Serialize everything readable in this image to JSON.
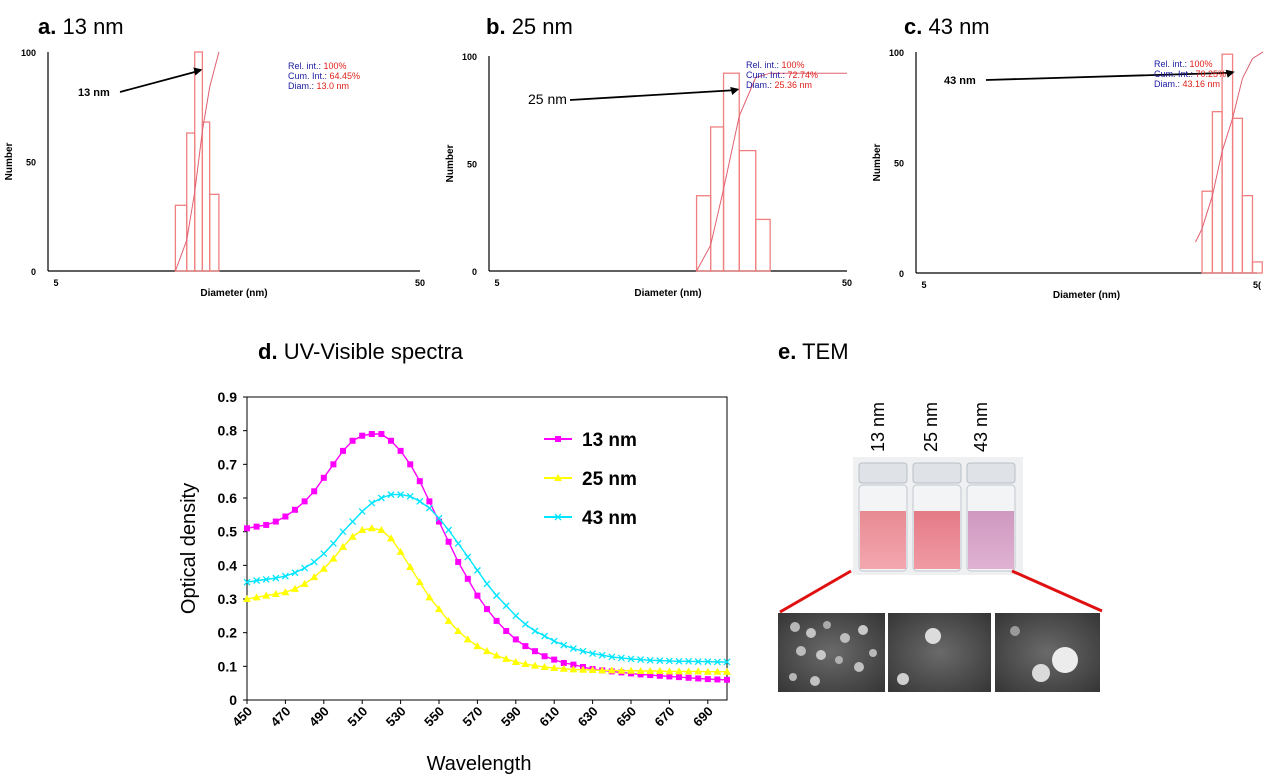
{
  "panels": {
    "a": {
      "letter": "a.",
      "title": "13 nm"
    },
    "b": {
      "letter": "b.",
      "title": "25 nm"
    },
    "c": {
      "letter": "c.",
      "title": "43 nm"
    },
    "d": {
      "letter": "d.",
      "title": "UV-Visible spectra"
    },
    "e": {
      "letter": "e.",
      "title": "TEM"
    }
  },
  "histogram_colors": {
    "bar": "#f08080",
    "curve": "#e06070",
    "label_key": "#1a1aa0",
    "label_value": "#e0201a"
  },
  "line_colors": [
    "#ff00ff",
    "#ffff00",
    "#00e5ff"
  ],
  "vial_labels": [
    "13 nm",
    "25 nm",
    "43 nm"
  ],
  "chart_data": [
    {
      "type": "bar",
      "panel": "a",
      "xlabel": "Diameter (nm)",
      "ylabel": "Number",
      "xscale": "log",
      "xlim": [
        5,
        50
      ],
      "ylim": [
        0,
        100
      ],
      "xticks": [
        "5",
        "50"
      ],
      "yticks": [
        "0",
        "50",
        "100"
      ],
      "bins": [
        {
          "x0": 11.0,
          "x1": 11.8,
          "value": 30
        },
        {
          "x0": 11.8,
          "x1": 12.4,
          "value": 63
        },
        {
          "x0": 12.4,
          "x1": 13.0,
          "value": 100
        },
        {
          "x0": 13.0,
          "x1": 13.6,
          "value": 68
        },
        {
          "x0": 13.6,
          "x1": 14.4,
          "value": 35
        }
      ],
      "cumulative": [
        [
          11.0,
          0
        ],
        [
          11.8,
          14
        ],
        [
          12.4,
          36
        ],
        [
          13.0,
          64
        ],
        [
          13.6,
          84
        ],
        [
          14.4,
          100
        ]
      ],
      "annotation": {
        "text": "13 nm",
        "x": 13.0
      },
      "info": [
        {
          "key": "Rel. int.:",
          "value": "100%"
        },
        {
          "key": "Cum. Int.:",
          "value": "64.45%"
        },
        {
          "key": "Diam.:",
          "value": "13.0 nm"
        }
      ]
    },
    {
      "type": "bar",
      "panel": "b",
      "xlabel": "Diameter (nm)",
      "ylabel": "Number",
      "xscale": "log",
      "xlim": [
        5,
        50
      ],
      "ylim": [
        0,
        100
      ],
      "xticks": [
        "5",
        "50"
      ],
      "yticks": [
        "0",
        "50",
        "100"
      ],
      "bins": [
        {
          "x0": 19.0,
          "x1": 20.8,
          "value": 35
        },
        {
          "x0": 20.8,
          "x1": 22.6,
          "value": 67
        },
        {
          "x0": 22.6,
          "x1": 25.0,
          "value": 92
        },
        {
          "x0": 25.0,
          "x1": 27.8,
          "value": 56
        },
        {
          "x0": 27.8,
          "x1": 30.5,
          "value": 24
        }
      ],
      "cumulative": [
        [
          19.0,
          0
        ],
        [
          20.8,
          12
        ],
        [
          22.6,
          38
        ],
        [
          25.0,
          72
        ],
        [
          27.8,
          90
        ],
        [
          30.5,
          92
        ],
        [
          50,
          92
        ]
      ],
      "annotation": {
        "text": "25 nm",
        "x": 25.0
      },
      "info": [
        {
          "key": "Rel. int.:",
          "value": "100%"
        },
        {
          "key": "Cum. Int.:",
          "value": "72.74%"
        },
        {
          "key": "Diam.:",
          "value": "25.36 nm"
        }
      ]
    },
    {
      "type": "bar",
      "panel": "c",
      "xlabel": "Diameter (nm)",
      "ylabel": "Number",
      "xscale": "log",
      "xlim": [
        5,
        50
      ],
      "ylim": [
        0,
        100
      ],
      "xticks": [
        "5",
        "5("
      ],
      "yticks": [
        "0",
        "50",
        "100"
      ],
      "bins": [
        {
          "x0": 34.5,
          "x1": 37.0,
          "value": 37
        },
        {
          "x0": 37.0,
          "x1": 39.5,
          "value": 73
        },
        {
          "x0": 39.5,
          "x1": 42.4,
          "value": 99
        },
        {
          "x0": 42.4,
          "x1": 45.3,
          "value": 70
        },
        {
          "x0": 45.3,
          "x1": 48.5,
          "value": 35
        },
        {
          "x0": 48.5,
          "x1": 51.8,
          "value": 5
        }
      ],
      "cumulative": [
        [
          33.0,
          14
        ],
        [
          34.5,
          20
        ],
        [
          37.0,
          35
        ],
        [
          39.5,
          55
        ],
        [
          42.4,
          70
        ],
        [
          45.3,
          88
        ],
        [
          48.5,
          97
        ],
        [
          52.0,
          100
        ],
        [
          55.0,
          100
        ]
      ],
      "annotation": {
        "text": "43 nm",
        "x": 43.0
      },
      "info": [
        {
          "key": "Rel. int.:",
          "value": "100%"
        },
        {
          "key": "Cum. Int.:",
          "value": "70.25%"
        },
        {
          "key": "Diam.:",
          "value": "43.16 nm"
        }
      ]
    },
    {
      "type": "line",
      "panel": "d",
      "xlabel": "Wavelength",
      "ylabel": "Optical density",
      "xlim": [
        450,
        700
      ],
      "ylim": [
        0,
        0.9
      ],
      "xticks": [
        450,
        470,
        490,
        510,
        530,
        550,
        570,
        590,
        610,
        630,
        650,
        670,
        690
      ],
      "yticks": [
        "0",
        "0.1",
        "0.2",
        "0.3",
        "0.4",
        "0.5",
        "0.6",
        "0.7",
        "0.8",
        "0.9"
      ],
      "legend_position": "top-right",
      "x": [
        450,
        455,
        460,
        465,
        470,
        475,
        480,
        485,
        490,
        495,
        500,
        505,
        510,
        515,
        520,
        525,
        530,
        535,
        540,
        545,
        550,
        555,
        560,
        565,
        570,
        575,
        580,
        585,
        590,
        595,
        600,
        605,
        610,
        615,
        620,
        625,
        630,
        635,
        640,
        645,
        650,
        655,
        660,
        665,
        670,
        675,
        680,
        685,
        690,
        695,
        700
      ],
      "series": [
        {
          "name": "13 nm",
          "marker": "square",
          "values": [
            0.51,
            0.515,
            0.52,
            0.53,
            0.545,
            0.565,
            0.59,
            0.62,
            0.66,
            0.7,
            0.74,
            0.77,
            0.785,
            0.79,
            0.79,
            0.77,
            0.74,
            0.7,
            0.65,
            0.59,
            0.53,
            0.47,
            0.41,
            0.36,
            0.31,
            0.27,
            0.235,
            0.205,
            0.18,
            0.16,
            0.145,
            0.13,
            0.12,
            0.11,
            0.105,
            0.098,
            0.092,
            0.088,
            0.085,
            0.082,
            0.079,
            0.076,
            0.074,
            0.072,
            0.07,
            0.068,
            0.066,
            0.064,
            0.062,
            0.061,
            0.06
          ]
        },
        {
          "name": "25 nm",
          "marker": "triangle",
          "values": [
            0.3,
            0.305,
            0.31,
            0.315,
            0.32,
            0.33,
            0.345,
            0.365,
            0.39,
            0.42,
            0.455,
            0.485,
            0.505,
            0.51,
            0.505,
            0.48,
            0.44,
            0.395,
            0.35,
            0.305,
            0.27,
            0.235,
            0.205,
            0.18,
            0.16,
            0.145,
            0.132,
            0.122,
            0.113,
            0.107,
            0.102,
            0.098,
            0.095,
            0.093,
            0.091,
            0.09,
            0.089,
            0.088,
            0.088,
            0.087,
            0.087,
            0.086,
            0.086,
            0.086,
            0.085,
            0.085,
            0.085,
            0.085,
            0.084,
            0.084,
            0.084
          ]
        },
        {
          "name": "43 nm",
          "marker": "x",
          "values": [
            0.35,
            0.355,
            0.358,
            0.362,
            0.368,
            0.378,
            0.392,
            0.41,
            0.435,
            0.465,
            0.5,
            0.53,
            0.56,
            0.585,
            0.6,
            0.61,
            0.61,
            0.605,
            0.59,
            0.57,
            0.54,
            0.505,
            0.465,
            0.425,
            0.385,
            0.345,
            0.31,
            0.28,
            0.25,
            0.225,
            0.205,
            0.19,
            0.175,
            0.163,
            0.153,
            0.145,
            0.138,
            0.133,
            0.128,
            0.125,
            0.122,
            0.12,
            0.118,
            0.117,
            0.116,
            0.115,
            0.115,
            0.114,
            0.114,
            0.113,
            0.113
          ]
        }
      ]
    }
  ]
}
